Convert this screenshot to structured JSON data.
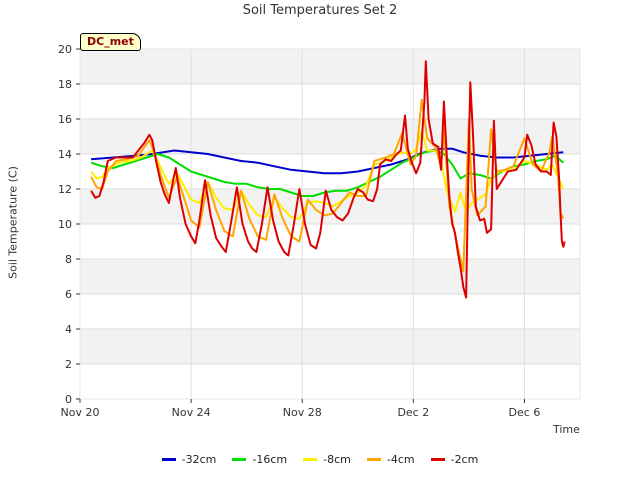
{
  "chart_data": {
    "type": "line",
    "title": "Soil Temperatures Set 2",
    "xlabel": "Time",
    "ylabel": "Soil Temperature (C)",
    "annotation": "DC_met",
    "ylim": [
      0,
      20
    ],
    "xlim": [
      0,
      18
    ],
    "yticks": [
      0,
      2,
      4,
      6,
      8,
      10,
      12,
      14,
      16,
      18,
      20
    ],
    "xticks": [
      {
        "value": 0,
        "label": "Nov 20"
      },
      {
        "value": 4,
        "label": "Nov 24"
      },
      {
        "value": 8,
        "label": "Nov 28"
      },
      {
        "value": 12,
        "label": "Dec 2"
      },
      {
        "value": 16,
        "label": "Dec 6"
      }
    ],
    "grid": true,
    "legend_position": "bottom",
    "series": [
      {
        "name": "-32cm",
        "color": "#0000cc",
        "points": [
          [
            0.4,
            13.7
          ],
          [
            1.2,
            13.8
          ],
          [
            2.0,
            13.9
          ],
          [
            2.6,
            14.0
          ],
          [
            3.0,
            14.1
          ],
          [
            3.4,
            14.2
          ],
          [
            4.0,
            14.1
          ],
          [
            4.6,
            14.0
          ],
          [
            5.2,
            13.8
          ],
          [
            5.8,
            13.6
          ],
          [
            6.4,
            13.5
          ],
          [
            7.0,
            13.3
          ],
          [
            7.6,
            13.1
          ],
          [
            8.2,
            13.0
          ],
          [
            8.8,
            12.9
          ],
          [
            9.4,
            12.9
          ],
          [
            10.0,
            13.0
          ],
          [
            10.6,
            13.2
          ],
          [
            11.2,
            13.4
          ],
          [
            11.8,
            13.7
          ],
          [
            12.2,
            14.0
          ],
          [
            12.6,
            14.2
          ],
          [
            13.0,
            14.3
          ],
          [
            13.4,
            14.3
          ],
          [
            13.8,
            14.1
          ],
          [
            14.4,
            13.9
          ],
          [
            15.0,
            13.8
          ],
          [
            15.6,
            13.8
          ],
          [
            16.2,
            13.9
          ],
          [
            16.8,
            14.0
          ],
          [
            17.4,
            14.1
          ]
        ]
      },
      {
        "name": "-16cm",
        "color": "#00dd00",
        "points": [
          [
            0.4,
            13.5
          ],
          [
            0.8,
            13.3
          ],
          [
            1.2,
            13.2
          ],
          [
            1.6,
            13.4
          ],
          [
            2.0,
            13.6
          ],
          [
            2.4,
            13.8
          ],
          [
            2.8,
            14.0
          ],
          [
            3.2,
            13.8
          ],
          [
            3.6,
            13.4
          ],
          [
            4.0,
            13.0
          ],
          [
            4.4,
            12.8
          ],
          [
            4.8,
            12.6
          ],
          [
            5.2,
            12.4
          ],
          [
            5.6,
            12.3
          ],
          [
            6.0,
            12.3
          ],
          [
            6.4,
            12.1
          ],
          [
            6.8,
            12.0
          ],
          [
            7.2,
            12.0
          ],
          [
            7.6,
            11.8
          ],
          [
            8.0,
            11.6
          ],
          [
            8.4,
            11.6
          ],
          [
            8.8,
            11.8
          ],
          [
            9.2,
            11.9
          ],
          [
            9.6,
            11.9
          ],
          [
            10.0,
            12.1
          ],
          [
            10.4,
            12.4
          ],
          [
            10.8,
            12.7
          ],
          [
            11.2,
            13.1
          ],
          [
            11.6,
            13.5
          ],
          [
            12.0,
            13.8
          ],
          [
            12.4,
            14.1
          ],
          [
            12.8,
            14.2
          ],
          [
            13.1,
            14.0
          ],
          [
            13.4,
            13.4
          ],
          [
            13.7,
            12.6
          ],
          [
            14.0,
            12.9
          ],
          [
            14.4,
            12.8
          ],
          [
            14.8,
            12.6
          ],
          [
            15.2,
            13.0
          ],
          [
            15.6,
            13.3
          ],
          [
            16.0,
            13.4
          ],
          [
            16.4,
            13.6
          ],
          [
            16.8,
            13.7
          ],
          [
            17.1,
            13.9
          ],
          [
            17.4,
            13.5
          ]
        ]
      },
      {
        "name": "-8cm",
        "color": "#ffee00",
        "points": [
          [
            0.4,
            13.0
          ],
          [
            0.6,
            12.6
          ],
          [
            0.8,
            12.7
          ],
          [
            1.0,
            13.2
          ],
          [
            1.4,
            13.5
          ],
          [
            1.8,
            13.6
          ],
          [
            2.2,
            13.8
          ],
          [
            2.6,
            14.2
          ],
          [
            2.8,
            13.6
          ],
          [
            3.0,
            12.9
          ],
          [
            3.2,
            12.3
          ],
          [
            3.5,
            12.9
          ],
          [
            3.8,
            12.0
          ],
          [
            4.0,
            11.4
          ],
          [
            4.3,
            11.2
          ],
          [
            4.6,
            12.4
          ],
          [
            4.9,
            11.5
          ],
          [
            5.2,
            10.9
          ],
          [
            5.5,
            10.8
          ],
          [
            5.8,
            11.9
          ],
          [
            6.1,
            11.1
          ],
          [
            6.4,
            10.5
          ],
          [
            6.7,
            10.4
          ],
          [
            7.0,
            11.5
          ],
          [
            7.3,
            10.9
          ],
          [
            7.6,
            10.4
          ],
          [
            7.9,
            10.3
          ],
          [
            8.2,
            11.2
          ],
          [
            8.5,
            11.3
          ],
          [
            8.8,
            11.2
          ],
          [
            9.1,
            11.0
          ],
          [
            9.4,
            11.3
          ],
          [
            9.7,
            11.6
          ],
          [
            10.0,
            11.8
          ],
          [
            10.3,
            12.2
          ],
          [
            10.6,
            13.4
          ],
          [
            11.0,
            13.6
          ],
          [
            11.3,
            13.9
          ],
          [
            11.6,
            14.1
          ],
          [
            11.9,
            14.0
          ],
          [
            12.1,
            14.3
          ],
          [
            12.3,
            15.3
          ],
          [
            12.5,
            14.2
          ],
          [
            12.8,
            14.2
          ],
          [
            13.0,
            13.6
          ],
          [
            13.2,
            11.9
          ],
          [
            13.5,
            10.7
          ],
          [
            13.7,
            11.8
          ],
          [
            13.9,
            10.7
          ],
          [
            14.1,
            11.2
          ],
          [
            14.4,
            11.5
          ],
          [
            14.6,
            11.7
          ],
          [
            14.8,
            12.6
          ],
          [
            15.1,
            13.0
          ],
          [
            15.6,
            13.1
          ],
          [
            16.0,
            13.6
          ],
          [
            16.4,
            13.4
          ],
          [
            16.8,
            13.1
          ],
          [
            17.0,
            13.4
          ],
          [
            17.2,
            12.7
          ],
          [
            17.4,
            12.0
          ]
        ]
      },
      {
        "name": "-4cm",
        "color": "#ffa500",
        "points": [
          [
            0.4,
            12.7
          ],
          [
            0.6,
            12.1
          ],
          [
            0.8,
            12.0
          ],
          [
            1.0,
            13.0
          ],
          [
            1.3,
            13.6
          ],
          [
            1.7,
            13.7
          ],
          [
            2.1,
            13.9
          ],
          [
            2.5,
            14.8
          ],
          [
            2.7,
            14.0
          ],
          [
            2.9,
            12.8
          ],
          [
            3.2,
            11.5
          ],
          [
            3.5,
            12.7
          ],
          [
            3.8,
            11.2
          ],
          [
            4.0,
            10.2
          ],
          [
            4.3,
            9.8
          ],
          [
            4.6,
            12.4
          ],
          [
            4.9,
            10.8
          ],
          [
            5.2,
            9.6
          ],
          [
            5.5,
            9.3
          ],
          [
            5.8,
            11.9
          ],
          [
            6.1,
            10.3
          ],
          [
            6.4,
            9.3
          ],
          [
            6.7,
            9.1
          ],
          [
            7.0,
            11.7
          ],
          [
            7.3,
            10.3
          ],
          [
            7.6,
            9.3
          ],
          [
            7.9,
            9.0
          ],
          [
            8.2,
            11.4
          ],
          [
            8.5,
            10.8
          ],
          [
            8.8,
            10.5
          ],
          [
            9.1,
            10.6
          ],
          [
            9.4,
            11.2
          ],
          [
            9.7,
            11.8
          ],
          [
            10.0,
            11.6
          ],
          [
            10.3,
            11.6
          ],
          [
            10.6,
            13.6
          ],
          [
            11.0,
            13.8
          ],
          [
            11.3,
            14.0
          ],
          [
            11.6,
            15.2
          ],
          [
            11.9,
            13.4
          ],
          [
            12.1,
            13.9
          ],
          [
            12.3,
            17.1
          ],
          [
            12.5,
            14.9
          ],
          [
            12.8,
            14.4
          ],
          [
            13.0,
            13.2
          ],
          [
            13.1,
            15.5
          ],
          [
            13.3,
            11.0
          ],
          [
            13.5,
            9.4
          ],
          [
            13.8,
            7.3
          ],
          [
            14.0,
            16.0
          ],
          [
            14.1,
            12.0
          ],
          [
            14.3,
            10.5
          ],
          [
            14.6,
            11.0
          ],
          [
            14.8,
            15.4
          ],
          [
            15.0,
            13.0
          ],
          [
            15.3,
            13.1
          ],
          [
            15.6,
            13.3
          ],
          [
            16.0,
            14.9
          ],
          [
            16.3,
            13.4
          ],
          [
            16.6,
            13.0
          ],
          [
            16.9,
            14.1
          ],
          [
            17.0,
            15.0
          ],
          [
            17.2,
            12.9
          ],
          [
            17.3,
            10.6
          ],
          [
            17.4,
            10.3
          ]
        ]
      },
      {
        "name": "-2cm",
        "color": "#dd0000",
        "points": [
          [
            0.4,
            11.9
          ],
          [
            0.55,
            11.5
          ],
          [
            0.7,
            11.6
          ],
          [
            0.85,
            12.4
          ],
          [
            1.0,
            13.6
          ],
          [
            1.3,
            13.8
          ],
          [
            1.6,
            13.8
          ],
          [
            1.9,
            13.8
          ],
          [
            2.1,
            14.2
          ],
          [
            2.3,
            14.6
          ],
          [
            2.5,
            15.1
          ],
          [
            2.6,
            14.8
          ],
          [
            2.75,
            13.5
          ],
          [
            2.9,
            12.4
          ],
          [
            3.05,
            11.7
          ],
          [
            3.2,
            11.2
          ],
          [
            3.35,
            12.5
          ],
          [
            3.45,
            13.2
          ],
          [
            3.6,
            11.5
          ],
          [
            3.8,
            10.0
          ],
          [
            4.0,
            9.3
          ],
          [
            4.15,
            8.9
          ],
          [
            4.3,
            10.2
          ],
          [
            4.5,
            12.5
          ],
          [
            4.7,
            10.5
          ],
          [
            4.9,
            9.2
          ],
          [
            5.1,
            8.7
          ],
          [
            5.25,
            8.4
          ],
          [
            5.45,
            10.2
          ],
          [
            5.65,
            12.1
          ],
          [
            5.85,
            10.0
          ],
          [
            6.05,
            9.0
          ],
          [
            6.2,
            8.6
          ],
          [
            6.35,
            8.4
          ],
          [
            6.55,
            10.0
          ],
          [
            6.75,
            12.1
          ],
          [
            6.95,
            10.2
          ],
          [
            7.15,
            9.0
          ],
          [
            7.35,
            8.4
          ],
          [
            7.5,
            8.2
          ],
          [
            7.7,
            10.0
          ],
          [
            7.9,
            12.0
          ],
          [
            8.1,
            10.0
          ],
          [
            8.3,
            8.8
          ],
          [
            8.5,
            8.6
          ],
          [
            8.65,
            9.5
          ],
          [
            8.85,
            11.9
          ],
          [
            9.05,
            10.8
          ],
          [
            9.25,
            10.4
          ],
          [
            9.45,
            10.2
          ],
          [
            9.65,
            10.6
          ],
          [
            9.85,
            11.5
          ],
          [
            10.0,
            12.0
          ],
          [
            10.2,
            11.8
          ],
          [
            10.35,
            11.4
          ],
          [
            10.55,
            11.3
          ],
          [
            10.7,
            12.0
          ],
          [
            10.8,
            13.4
          ],
          [
            11.0,
            13.7
          ],
          [
            11.2,
            13.6
          ],
          [
            11.4,
            14.0
          ],
          [
            11.55,
            14.2
          ],
          [
            11.7,
            16.2
          ],
          [
            11.8,
            14.3
          ],
          [
            11.95,
            13.5
          ],
          [
            12.1,
            12.9
          ],
          [
            12.25,
            13.5
          ],
          [
            12.4,
            17.0
          ],
          [
            12.45,
            19.3
          ],
          [
            12.55,
            16.0
          ],
          [
            12.7,
            14.6
          ],
          [
            12.9,
            14.4
          ],
          [
            13.0,
            13.1
          ],
          [
            13.1,
            17.0
          ],
          [
            13.2,
            14.0
          ],
          [
            13.3,
            11.5
          ],
          [
            13.4,
            10.0
          ],
          [
            13.5,
            9.5
          ],
          [
            13.6,
            8.4
          ],
          [
            13.7,
            7.5
          ],
          [
            13.8,
            6.4
          ],
          [
            13.9,
            5.8
          ],
          [
            14.0,
            14.5
          ],
          [
            14.05,
            18.1
          ],
          [
            14.15,
            15.0
          ],
          [
            14.25,
            11.0
          ],
          [
            14.4,
            10.2
          ],
          [
            14.55,
            10.3
          ],
          [
            14.65,
            9.5
          ],
          [
            14.8,
            9.7
          ],
          [
            14.9,
            15.9
          ],
          [
            15.0,
            12.0
          ],
          [
            15.2,
            12.5
          ],
          [
            15.4,
            13.0
          ],
          [
            15.7,
            13.1
          ],
          [
            16.0,
            13.8
          ],
          [
            16.1,
            15.1
          ],
          [
            16.25,
            14.5
          ],
          [
            16.4,
            13.4
          ],
          [
            16.6,
            13.0
          ],
          [
            16.8,
            13.0
          ],
          [
            16.95,
            12.8
          ],
          [
            17.05,
            15.8
          ],
          [
            17.15,
            15.0
          ],
          [
            17.25,
            12.5
          ],
          [
            17.3,
            10.5
          ],
          [
            17.35,
            9.0
          ],
          [
            17.4,
            8.7
          ],
          [
            17.45,
            9.0
          ]
        ]
      }
    ]
  }
}
